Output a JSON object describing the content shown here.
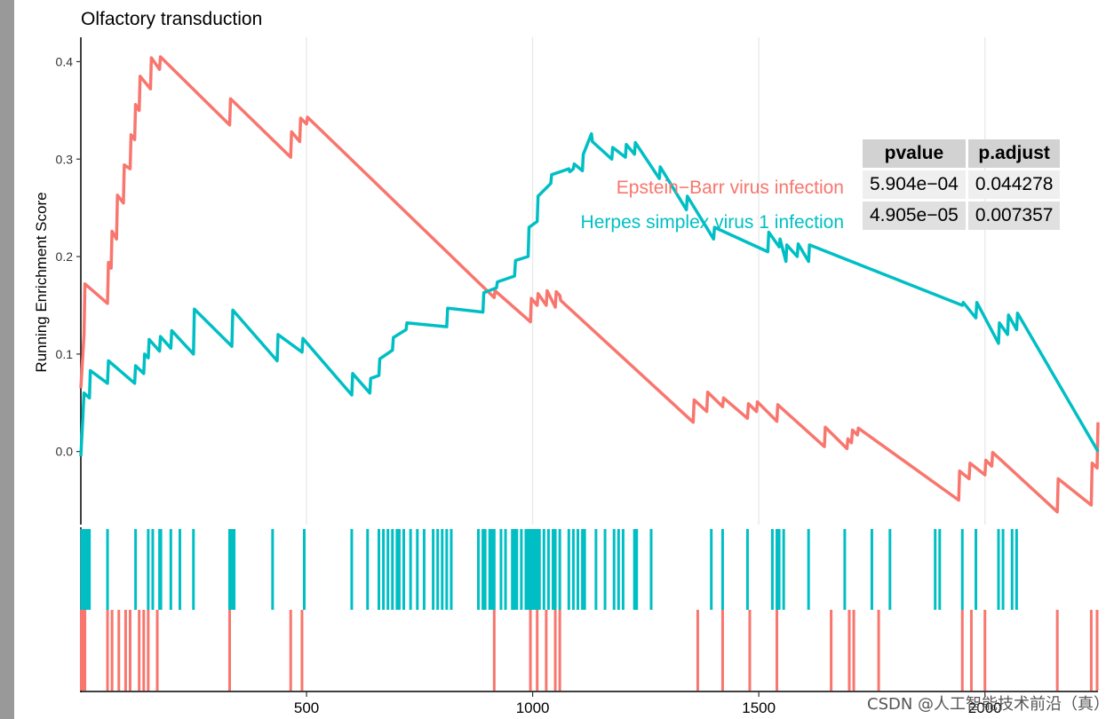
{
  "chart_data": {
    "type": "line",
    "title": "Olfactory transduction",
    "ylabel": "Running Enrichment Score",
    "xlabel": "",
    "xlim": [
      1,
      2250
    ],
    "ylim": [
      -0.075,
      0.425
    ],
    "x_ticks": [
      500,
      1000,
      1500,
      2000
    ],
    "y_ticks": [
      0.0,
      0.1,
      0.2,
      0.3,
      0.4
    ],
    "grid": "vertical",
    "series": [
      {
        "name": "Epstein-Barr virus infection",
        "label": "Epstein−Barr virus infection",
        "color": "#F8766D",
        "x": [
          1,
          8,
          10,
          60,
          62,
          68,
          70,
          80,
          82,
          95,
          97,
          110,
          112,
          120,
          122,
          130,
          132,
          155,
          157,
          175,
          177,
          330,
          332,
          465,
          467,
          485,
          487,
          500,
          502,
          915,
          917,
          995,
          997,
          1010,
          1012,
          1030,
          1032,
          1050,
          1052,
          1060,
          1062,
          1355,
          1357,
          1385,
          1387,
          1420,
          1422,
          1475,
          1477,
          1495,
          1497,
          1540,
          1542,
          1645,
          1647,
          1695,
          1697,
          1705,
          1707,
          1718,
          1720,
          1942,
          1944,
          1965,
          1967,
          2000,
          2002,
          2015,
          2017,
          2160,
          2162,
          2235,
          2237,
          2248,
          2250
        ],
        "y": [
          0.065,
          0.12,
          0.172,
          0.152,
          0.194,
          0.188,
          0.226,
          0.218,
          0.263,
          0.255,
          0.294,
          0.29,
          0.325,
          0.32,
          0.356,
          0.35,
          0.385,
          0.372,
          0.404,
          0.392,
          0.405,
          0.335,
          0.362,
          0.302,
          0.328,
          0.318,
          0.342,
          0.336,
          0.343,
          0.158,
          0.165,
          0.133,
          0.157,
          0.15,
          0.162,
          0.15,
          0.165,
          0.148,
          0.164,
          0.16,
          0.155,
          0.03,
          0.053,
          0.041,
          0.061,
          0.046,
          0.055,
          0.034,
          0.049,
          0.041,
          0.051,
          0.031,
          0.048,
          0.005,
          0.025,
          0.003,
          0.013,
          0.009,
          0.022,
          0.017,
          0.024,
          -0.05,
          -0.02,
          -0.028,
          -0.012,
          -0.024,
          -0.009,
          -0.015,
          -0.001,
          -0.062,
          -0.028,
          -0.055,
          -0.012,
          -0.017,
          0.03
        ]
      },
      {
        "name": "Herpes simplex virus 1 infection",
        "label": "Herpes simplex virus 1 infection",
        "color": "#00BFC4",
        "x": [
          1,
          5,
          8,
          20,
          22,
          60,
          62,
          120,
          122,
          140,
          142,
          150,
          152,
          175,
          177,
          200,
          202,
          250,
          252,
          335,
          337,
          435,
          437,
          490,
          492,
          600,
          602,
          640,
          642,
          660,
          662,
          690,
          692,
          720,
          722,
          810,
          812,
          890,
          892,
          920,
          922,
          960,
          962,
          990,
          992,
          1010,
          1012,
          1040,
          1042,
          1080,
          1082,
          1090,
          1092,
          1110,
          1112,
          1130,
          1132,
          1175,
          1177,
          1205,
          1207,
          1225,
          1227,
          1280,
          1282,
          1340,
          1342,
          1400,
          1402,
          1520,
          1522,
          1545,
          1547,
          1560,
          1562,
          1585,
          1587,
          1610,
          1612,
          1950,
          1952,
          1980,
          1982,
          2030,
          2032,
          2050,
          2052,
          2070,
          2072,
          2250
        ],
        "y": [
          -0.005,
          0.03,
          0.06,
          0.055,
          0.083,
          0.07,
          0.093,
          0.07,
          0.088,
          0.08,
          0.1,
          0.096,
          0.115,
          0.103,
          0.118,
          0.106,
          0.124,
          0.1,
          0.146,
          0.108,
          0.145,
          0.093,
          0.12,
          0.102,
          0.116,
          0.058,
          0.08,
          0.06,
          0.075,
          0.078,
          0.095,
          0.104,
          0.117,
          0.125,
          0.132,
          0.128,
          0.147,
          0.143,
          0.163,
          0.168,
          0.174,
          0.18,
          0.196,
          0.2,
          0.23,
          0.236,
          0.262,
          0.275,
          0.284,
          0.29,
          0.287,
          0.29,
          0.295,
          0.288,
          0.305,
          0.326,
          0.318,
          0.3,
          0.312,
          0.302,
          0.315,
          0.305,
          0.317,
          0.28,
          0.292,
          0.248,
          0.262,
          0.218,
          0.23,
          0.205,
          0.225,
          0.21,
          0.218,
          0.195,
          0.212,
          0.2,
          0.213,
          0.195,
          0.212,
          0.15,
          0.153,
          0.137,
          0.153,
          0.111,
          0.132,
          0.12,
          0.14,
          0.125,
          0.142,
          0.0
        ]
      }
    ],
    "hits": [
      {
        "series": "Herpes simplex virus 1 infection",
        "x": [
          3,
          6,
          9,
          12,
          16,
          20,
          60,
          122,
          150,
          160,
          175,
          178,
          200,
          220,
          250,
          330,
          333,
          336,
          340,
          425,
          495,
          600,
          635,
          660,
          670,
          680,
          690,
          700,
          705,
          715,
          730,
          745,
          760,
          780,
          790,
          800,
          810,
          820,
          880,
          890,
          895,
          905,
          910,
          915,
          930,
          940,
          955,
          960,
          965,
          975,
          985,
          990,
          995,
          1000,
          1005,
          1010,
          1015,
          1025,
          1035,
          1045,
          1050,
          1060,
          1080,
          1090,
          1100,
          1110,
          1115,
          1140,
          1160,
          1180,
          1190,
          1200,
          1225,
          1230,
          1262,
          1395,
          1420,
          1475,
          1530,
          1540,
          1545,
          1555,
          1610,
          1690,
          1750,
          1790,
          1890,
          1900,
          1950,
          1980,
          2030,
          2040,
          2060,
          2070
        ],
        "y_min": 0.5,
        "y_max": 1.0
      },
      {
        "series": "Epstein-Barr virus infection",
        "x": [
          2,
          5,
          8,
          10,
          60,
          70,
          85,
          100,
          110,
          130,
          140,
          150,
          170,
          330,
          465,
          490,
          915,
          995,
          1010,
          1030,
          1050,
          1060,
          1365,
          1420,
          1480,
          1540,
          1660,
          1700,
          1710,
          1765,
          1950,
          1970,
          2000,
          2160,
          2235,
          2248
        ],
        "y_min": 0.0,
        "y_max": 0.5
      }
    ],
    "stats_table": {
      "headers": [
        "pvalue",
        "p.adjust"
      ],
      "rows": [
        [
          "5.904e−04",
          "0.044278"
        ],
        [
          "4.905e−05",
          "0.007357"
        ]
      ]
    }
  },
  "watermark": "CSDN @人工智能技术前沿（真）"
}
